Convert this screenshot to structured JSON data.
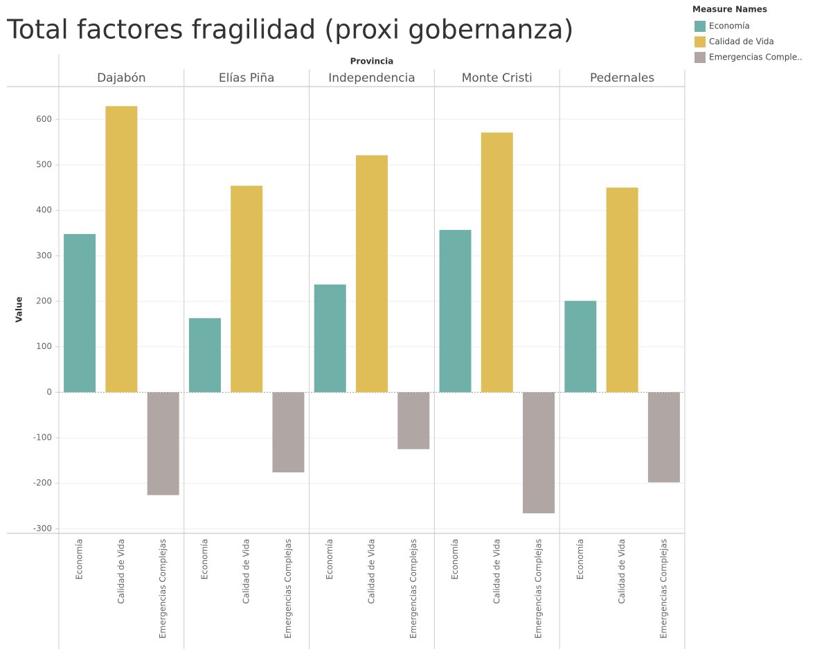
{
  "chart_data": {
    "type": "bar",
    "title": "Total factores fragilidad (proxi gobernanza)",
    "column_header": "Provincia",
    "y_label": "Value",
    "categories": [
      "Dajabón",
      "Elías Piña",
      "Independencia",
      "Monte Cristi",
      "Pedernales"
    ],
    "series": [
      {
        "name": "Economía",
        "color": "#6fb0a9",
        "values": [
          348,
          163,
          237,
          357,
          201
        ]
      },
      {
        "name": "Calidad de Vida",
        "color": "#dfbe58",
        "values": [
          629,
          454,
          521,
          571,
          450
        ]
      },
      {
        "name": "Emergencias Complejas",
        "color": "#b0a6a4",
        "values": [
          -226,
          -176,
          -125,
          -266,
          -198
        ]
      }
    ],
    "ylim": [
      -310,
      672
    ],
    "yticks": [
      -300,
      -200,
      -100,
      0,
      100,
      200,
      300,
      400,
      500,
      600
    ],
    "grid": true,
    "legend": {
      "title": "Measure Names",
      "position": "top-right",
      "labels": [
        "Economía",
        "Calidad de Vida",
        "Emergencias Comple.."
      ]
    }
  }
}
